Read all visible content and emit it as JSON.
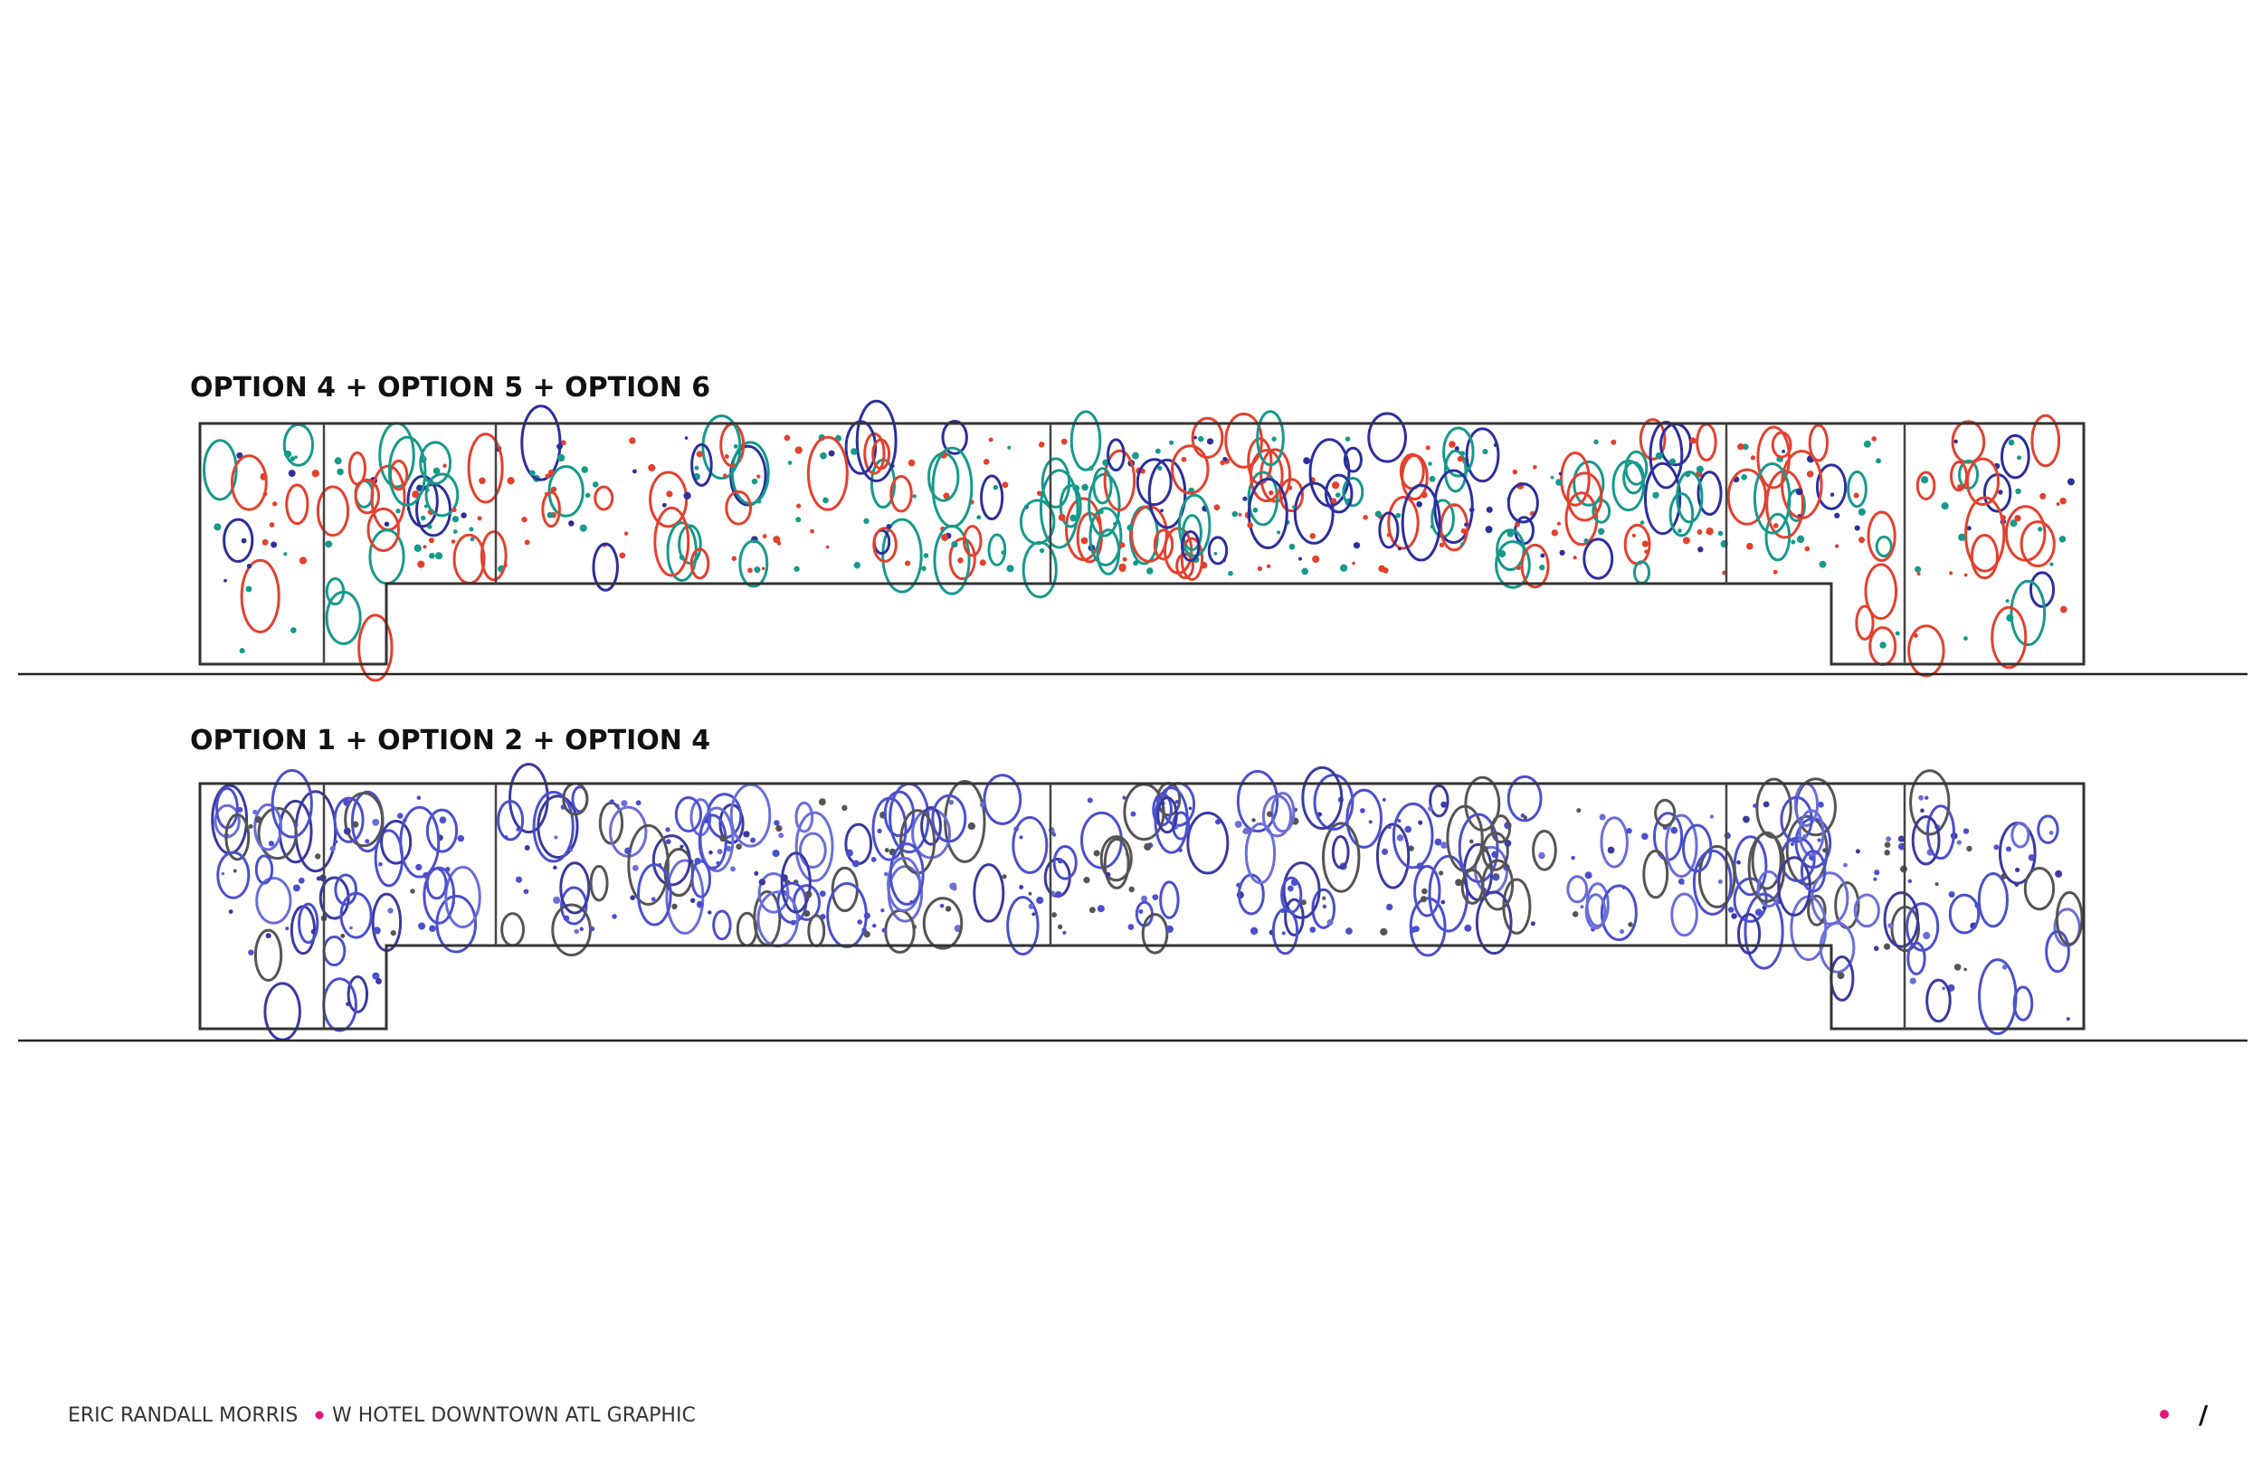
{
  "panels": [
    {
      "title": "OPTION 4 + OPTION 5 + OPTION 6"
    },
    {
      "title": "OPTION 1 + OPTION 2 + OPTION 4"
    }
  ],
  "footer": {
    "author": "ERIC RANDALL MORRIS",
    "project": "W HOTEL DOWNTOWN ATL GRAPHIC",
    "page_mark": "/"
  }
}
